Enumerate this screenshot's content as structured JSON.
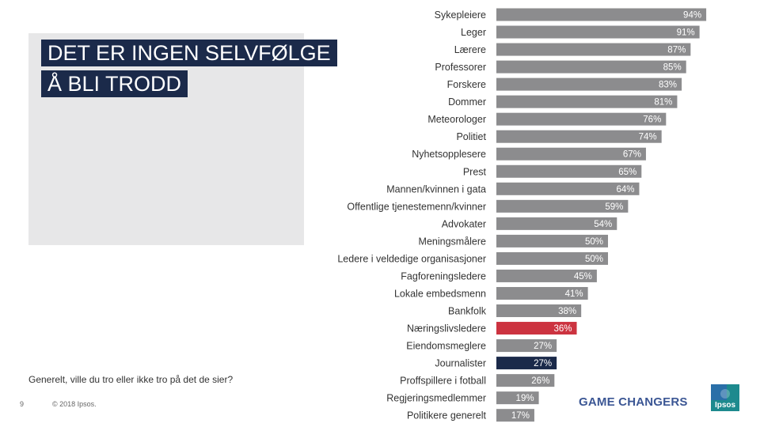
{
  "title": {
    "line1": "DET ER INGEN SELVFØLGE",
    "line2": "Å BLI TRODD"
  },
  "question": "Generelt, ville du tro eller ikke tro på det de sier?",
  "footer": {
    "page": "9",
    "copyright": "© 2018 Ipsos.",
    "tagline": "GAME CHANGERS",
    "logo_text": "Ipsos"
  },
  "colors": {
    "default": "#8c8c8e",
    "highlight_red": "#cc3340",
    "highlight_navy": "#1b2a4a",
    "title_bg": "#1b2a4a",
    "box_bg": "#e7e7e8",
    "logo_bg": "#1d8a8e"
  },
  "chart_data": {
    "type": "bar",
    "orientation": "horizontal",
    "categories": [
      "Sykepleiere",
      "Leger",
      "Lærere",
      "Professorer",
      "Forskere",
      "Dommer",
      "Meteorologer",
      "Politiet",
      "Nyhetsopplesere",
      "Prest",
      "Mannen/kvinnen i gata",
      "Offentlige tjenestemenn/kvinner",
      "Advokater",
      "Meningsmålere",
      "Ledere i veldedige organisasjoner",
      "Fagforeningsledere",
      "Lokale embedsmenn",
      "Bankfolk",
      "Næringslivsledere",
      "Eiendomsmeglere",
      "Journalister",
      "Proffspillere i fotball",
      "Regjeringsmedlemmer",
      "Politikere generelt"
    ],
    "values": [
      94,
      91,
      87,
      85,
      83,
      81,
      76,
      74,
      67,
      65,
      64,
      59,
      54,
      50,
      50,
      45,
      41,
      38,
      36,
      27,
      27,
      26,
      19,
      17
    ],
    "value_labels": [
      "94%",
      "91%",
      "87%",
      "85%",
      "83%",
      "81%",
      "76%",
      "74%",
      "67%",
      "65%",
      "64%",
      "59%",
      "54%",
      "50%",
      "50%",
      "45%",
      "41%",
      "38%",
      "36%",
      "27%",
      "27%",
      "26%",
      "19%",
      "17%"
    ],
    "highlight": {
      "Næringslivsledere": "red",
      "Journalister": "navy"
    },
    "xlim": [
      0,
      100
    ],
    "unit": "%",
    "title": "",
    "xlabel": "",
    "ylabel": "",
    "grid": false,
    "legend": "none"
  }
}
